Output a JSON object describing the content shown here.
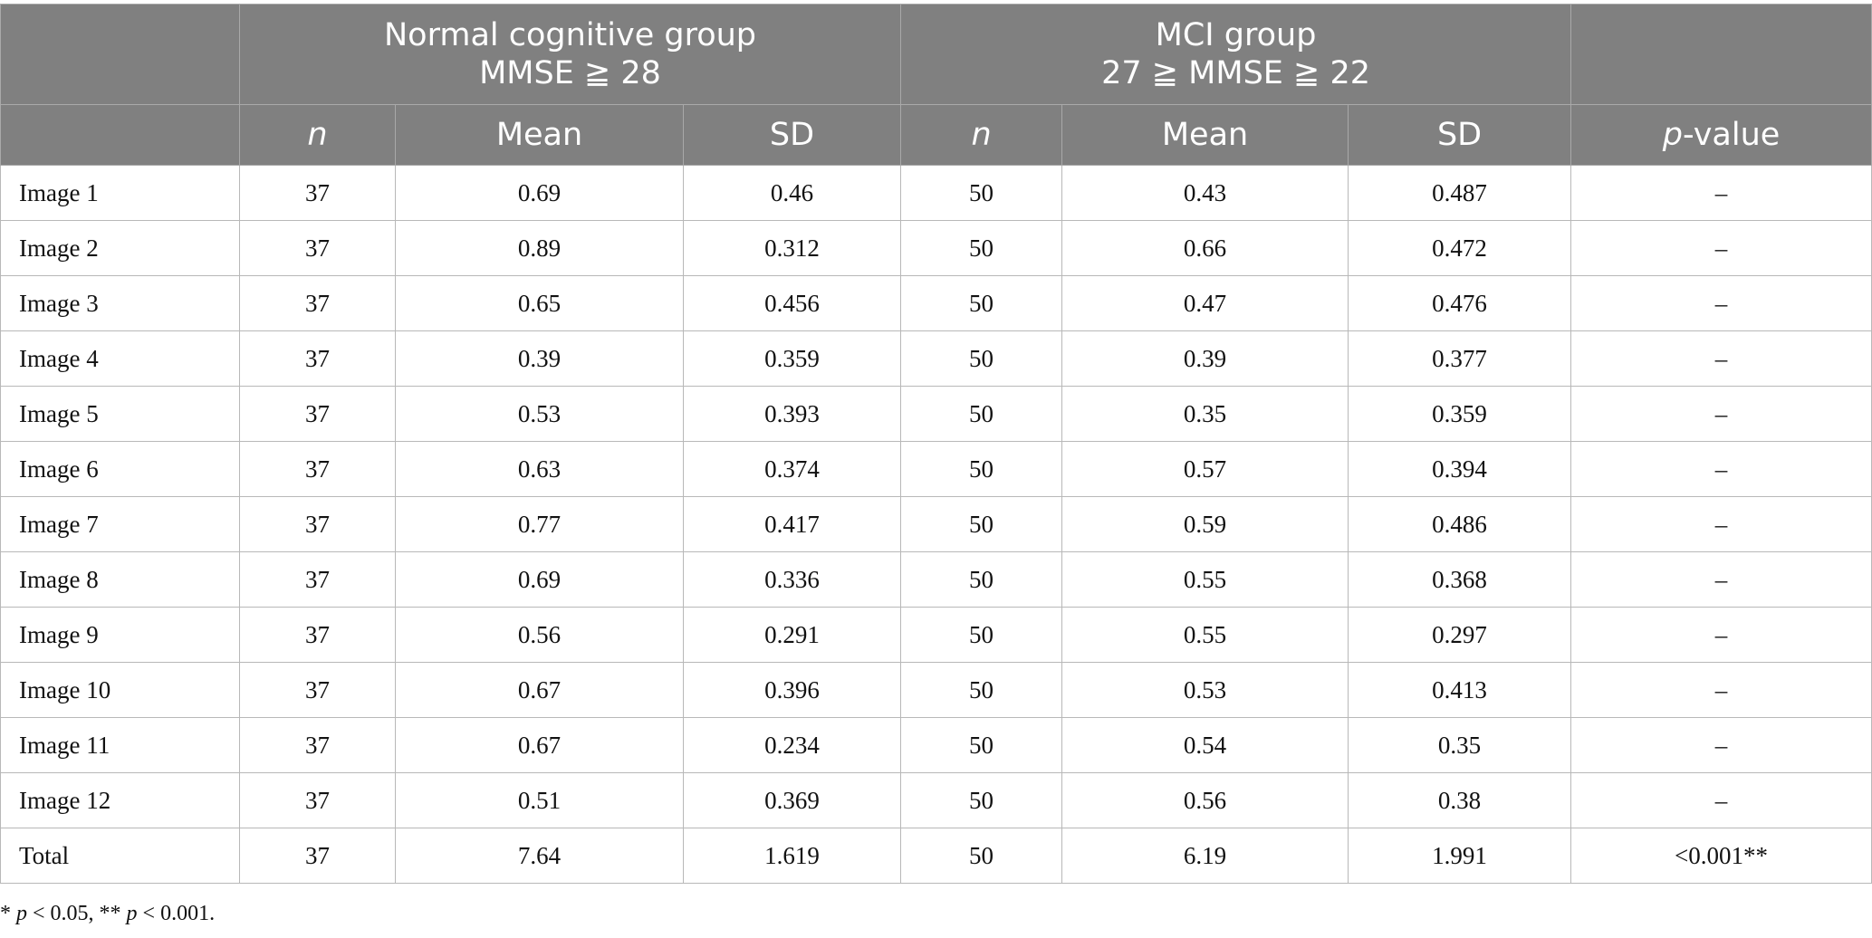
{
  "table": {
    "group_headers": [
      {
        "line1": "",
        "line2": ""
      },
      {
        "line1": "Normal cognitive group",
        "line2": "MMSE ≧ 28"
      },
      {
        "line1": "MCI group",
        "line2": "27 ≧ MMSE ≧ 22"
      },
      {
        "line1": "",
        "line2": ""
      }
    ],
    "sub_headers": [
      "",
      "n",
      "Mean",
      "SD",
      "n",
      "Mean",
      "SD",
      "p",
      "-value"
    ],
    "rows": [
      [
        "Image 1",
        "37",
        "0.69",
        "0.46",
        "50",
        "0.43",
        "0.487",
        "–"
      ],
      [
        "Image 2",
        "37",
        "0.89",
        "0.312",
        "50",
        "0.66",
        "0.472",
        "–"
      ],
      [
        "Image 3",
        "37",
        "0.65",
        "0.456",
        "50",
        "0.47",
        "0.476",
        "–"
      ],
      [
        "Image 4",
        "37",
        "0.39",
        "0.359",
        "50",
        "0.39",
        "0.377",
        "–"
      ],
      [
        "Image 5",
        "37",
        "0.53",
        "0.393",
        "50",
        "0.35",
        "0.359",
        "–"
      ],
      [
        "Image 6",
        "37",
        "0.63",
        "0.374",
        "50",
        "0.57",
        "0.394",
        "–"
      ],
      [
        "Image 7",
        "37",
        "0.77",
        "0.417",
        "50",
        "0.59",
        "0.486",
        "–"
      ],
      [
        "Image 8",
        "37",
        "0.69",
        "0.336",
        "50",
        "0.55",
        "0.368",
        "–"
      ],
      [
        "Image 9",
        "37",
        "0.56",
        "0.291",
        "50",
        "0.55",
        "0.297",
        "–"
      ],
      [
        "Image 10",
        "37",
        "0.67",
        "0.396",
        "50",
        "0.53",
        "0.413",
        "–"
      ],
      [
        "Image 11",
        "37",
        "0.67",
        "0.234",
        "50",
        "0.54",
        "0.35",
        "–"
      ],
      [
        "Image 12",
        "37",
        "0.51",
        "0.369",
        "50",
        "0.56",
        "0.38",
        "–"
      ],
      [
        "Total",
        "37",
        "7.64",
        "1.619",
        "50",
        "6.19",
        "1.991",
        "<0.001**"
      ]
    ]
  },
  "footnote": {
    "star1": "* ",
    "p1": "p",
    "t1": " < 0.05, ** ",
    "p2": "p",
    "t2": " < 0.001."
  },
  "colors": {
    "header_bg": "#808080",
    "header_text": "#ffffff",
    "grid": "#b8b8b8"
  }
}
